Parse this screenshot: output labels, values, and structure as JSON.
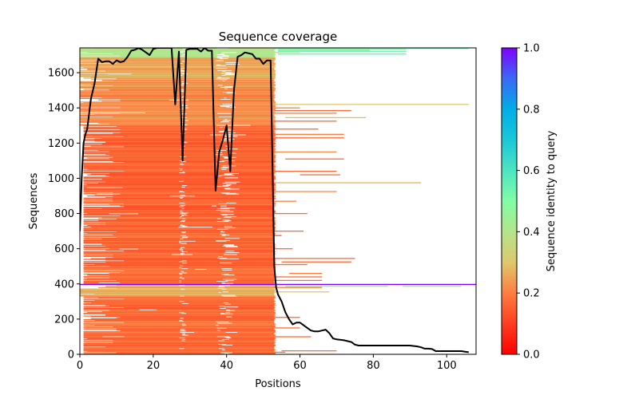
{
  "chart_data": {
    "type": "heatmap",
    "title": "Sequence coverage",
    "xlabel": "Positions",
    "ylabel": "Sequences",
    "xlim": [
      0,
      108
    ],
    "ylim": [
      0,
      1741
    ],
    "x_ticks": [
      0,
      20,
      40,
      60,
      80,
      100
    ],
    "y_ticks": [
      0,
      200,
      400,
      600,
      800,
      1000,
      1200,
      1400,
      1600
    ],
    "grid": false,
    "colorbar": {
      "label": "Sequence identity to query",
      "range": [
        0,
        1
      ],
      "ticks": [
        "0.0",
        "0.2",
        "0.4",
        "0.6",
        "0.8",
        "1.0"
      ],
      "colormap": "rainbow_r"
    },
    "query_row": {
      "sequence_index": 397,
      "identity": 1.0,
      "span": [
        0,
        108
      ]
    },
    "bands": [
      {
        "from_seq": 0,
        "to_seq": 330,
        "identity": 0.17,
        "main_span": [
          1,
          53
        ]
      },
      {
        "from_seq": 330,
        "to_seq": 397,
        "identity": 0.27,
        "main_span": [
          0,
          53
        ]
      },
      {
        "from_seq": 398,
        "to_seq": 1300,
        "identity": 0.16,
        "main_span": [
          1,
          53
        ]
      },
      {
        "from_seq": 1300,
        "to_seq": 1560,
        "identity": 0.22,
        "main_span": [
          0,
          53
        ]
      },
      {
        "from_seq": 1560,
        "to_seq": 1690,
        "identity": 0.26,
        "main_span": [
          0,
          53
        ]
      },
      {
        "from_seq": 1690,
        "to_seq": 1741,
        "identity": 0.42,
        "main_span": [
          0,
          53
        ]
      }
    ],
    "gap_columns": [
      {
        "x": [
          27,
          29
        ],
        "from_seq": 0,
        "to_seq": 1741,
        "density": 0.35
      },
      {
        "x": [
          37,
          43
        ],
        "from_seq": 0,
        "to_seq": 1741,
        "density": 0.4
      }
    ],
    "long_tail_rows": [
      {
        "seq": 1738,
        "span": [
          53,
          106
        ],
        "identity": 0.55
      },
      {
        "seq": 1733,
        "span": [
          54,
          89
        ],
        "identity": 0.45
      },
      {
        "seq": 1728,
        "span": [
          54,
          79
        ],
        "identity": 0.45
      },
      {
        "seq": 1722,
        "span": [
          54,
          89
        ],
        "identity": 0.55
      },
      {
        "seq": 1715,
        "span": [
          53,
          60
        ],
        "identity": 0.38
      },
      {
        "seq": 1706,
        "span": [
          54,
          89
        ],
        "identity": 0.55
      },
      {
        "seq": 1420,
        "span": [
          53,
          106
        ],
        "identity": 0.3
      },
      {
        "seq": 1400,
        "span": [
          53,
          60
        ],
        "identity": 0.2
      },
      {
        "seq": 1385,
        "span": [
          53,
          74
        ],
        "identity": 0.17
      },
      {
        "seq": 1370,
        "span": [
          53,
          70
        ],
        "identity": 0.2
      },
      {
        "seq": 1345,
        "span": [
          56,
          78
        ],
        "identity": 0.28
      },
      {
        "seq": 1325,
        "span": [
          53,
          70
        ],
        "identity": 0.17
      },
      {
        "seq": 1280,
        "span": [
          53,
          65
        ],
        "identity": 0.17
      },
      {
        "seq": 1250,
        "span": [
          53,
          72
        ],
        "identity": 0.2
      },
      {
        "seq": 1230,
        "span": [
          53,
          72
        ],
        "identity": 0.17
      },
      {
        "seq": 1150,
        "span": [
          53,
          70
        ],
        "identity": 0.22
      },
      {
        "seq": 1110,
        "span": [
          56,
          72
        ],
        "identity": 0.17
      },
      {
        "seq": 1020,
        "span": [
          60,
          71
        ],
        "identity": 0.17
      },
      {
        "seq": 1040,
        "span": [
          53,
          70
        ],
        "identity": 0.17
      },
      {
        "seq": 975,
        "span": [
          53,
          93
        ],
        "identity": 0.27
      },
      {
        "seq": 925,
        "span": [
          53,
          70
        ],
        "identity": 0.22
      },
      {
        "seq": 870,
        "span": [
          53,
          59
        ],
        "identity": 0.2
      },
      {
        "seq": 800,
        "span": [
          53,
          62
        ],
        "identity": 0.17
      },
      {
        "seq": 700,
        "span": [
          53,
          61
        ],
        "identity": 0.17
      },
      {
        "seq": 675,
        "span": [
          53,
          55
        ],
        "identity": 0.15
      },
      {
        "seq": 600,
        "span": [
          53,
          58
        ],
        "identity": 0.17
      },
      {
        "seq": 545,
        "span": [
          53,
          75
        ],
        "identity": 0.17
      },
      {
        "seq": 525,
        "span": [
          55,
          74
        ],
        "identity": 0.17
      },
      {
        "seq": 510,
        "span": [
          53,
          62
        ],
        "identity": 0.17
      },
      {
        "seq": 460,
        "span": [
          57,
          66
        ],
        "identity": 0.2
      },
      {
        "seq": 440,
        "span": [
          53,
          66
        ],
        "identity": 0.17
      },
      {
        "seq": 420,
        "span": [
          53,
          66
        ],
        "identity": 0.17
      },
      {
        "seq": 387,
        "span": [
          56,
          84
        ],
        "identity": 0.42
      },
      {
        "seq": 387,
        "span": [
          88,
          104
        ],
        "identity": 0.42
      },
      {
        "seq": 380,
        "span": [
          53,
          66
        ],
        "identity": 0.2
      },
      {
        "seq": 355,
        "span": [
          53,
          68
        ],
        "identity": 0.3
      },
      {
        "seq": 210,
        "span": [
          53,
          60
        ],
        "identity": 0.17
      },
      {
        "seq": 150,
        "span": [
          53,
          60
        ],
        "identity": 0.17
      },
      {
        "seq": 100,
        "span": [
          53,
          63
        ],
        "identity": 0.17
      },
      {
        "seq": 20,
        "span": [
          55,
          70
        ],
        "identity": 0.17
      },
      {
        "seq": 12,
        "span": [
          53,
          56
        ],
        "identity": 0.17
      }
    ],
    "coverage_line": {
      "x": [
        0,
        0.5,
        1,
        1.5,
        2,
        3,
        4,
        5,
        6,
        7,
        8,
        9,
        10,
        11,
        12,
        13,
        14,
        15,
        16,
        17,
        18,
        19,
        20,
        21,
        22,
        23,
        24,
        25,
        26,
        27,
        28,
        29,
        30,
        31,
        32,
        33,
        34,
        35,
        36,
        37,
        38,
        39,
        40,
        41,
        42,
        43,
        44,
        45,
        46,
        47,
        48,
        49,
        50,
        51,
        52,
        53,
        53.5,
        54,
        55,
        56,
        57,
        58,
        59,
        60,
        61,
        62,
        63,
        64,
        65,
        66,
        67,
        68,
        69,
        70,
        72,
        74,
        75,
        76,
        78,
        80,
        85,
        90,
        92,
        93,
        94,
        95,
        96,
        97,
        100,
        104,
        105,
        106
      ],
      "y": [
        700,
        1000,
        1200,
        1250,
        1280,
        1450,
        1540,
        1680,
        1660,
        1665,
        1665,
        1650,
        1670,
        1660,
        1665,
        1690,
        1725,
        1730,
        1740,
        1730,
        1715,
        1700,
        1735,
        1741,
        1741,
        1741,
        1741,
        1741,
        1420,
        1720,
        1100,
        1730,
        1735,
        1735,
        1735,
        1720,
        1740,
        1725,
        1725,
        930,
        1150,
        1220,
        1300,
        1040,
        1500,
        1690,
        1700,
        1715,
        1710,
        1705,
        1680,
        1680,
        1650,
        1670,
        1670,
        500,
        380,
        340,
        300,
        240,
        200,
        170,
        180,
        180,
        165,
        150,
        135,
        130,
        130,
        135,
        140,
        120,
        90,
        85,
        80,
        70,
        55,
        50,
        50,
        50,
        50,
        50,
        45,
        40,
        32,
        32,
        30,
        18,
        18,
        18,
        15,
        12
      ]
    }
  }
}
